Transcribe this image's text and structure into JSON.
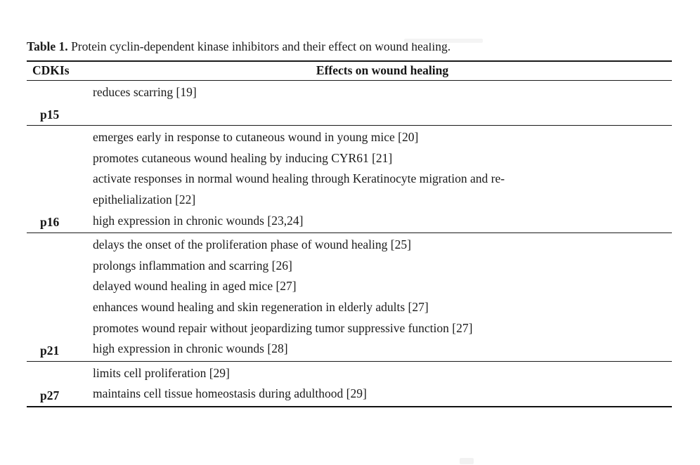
{
  "caption": {
    "label": "Table 1.",
    "text": "Protein cyclin-dependent kinase inhibitors and their effect on wound healing."
  },
  "table": {
    "columns": [
      "CDKIs",
      "Effects on wound healing"
    ],
    "groups": [
      {
        "cdki": "p15",
        "effects": [
          "reduces scarring [19]",
          ""
        ]
      },
      {
        "cdki": "p16",
        "effects": [
          "emerges early in response to cutaneous wound in young mice [20]",
          "promotes cutaneous wound healing by inducing CYR61 [21]",
          "activate responses in normal wound healing through Keratinocyte migration and re-",
          "epithelialization [22]",
          "high expression in chronic wounds [23,24]"
        ]
      },
      {
        "cdki": "p21",
        "effects": [
          "delays the onset of the proliferation phase of wound healing [25]",
          "prolongs inflammation and scarring [26]",
          "delayed wound healing in aged mice [27]",
          "enhances wound healing and skin regeneration in elderly adults [27]",
          "promotes wound repair without jeopardizing tumor suppressive function [27]",
          "high expression in chronic wounds [28]"
        ]
      },
      {
        "cdki": "p27",
        "effects": [
          "limits cell proliferation [29]",
          "maintains cell tissue homeostasis during adulthood [29]"
        ]
      }
    ]
  },
  "colors": {
    "text": "#1b1b1b",
    "rule": "#1a1a1a",
    "background": "#ffffff"
  }
}
